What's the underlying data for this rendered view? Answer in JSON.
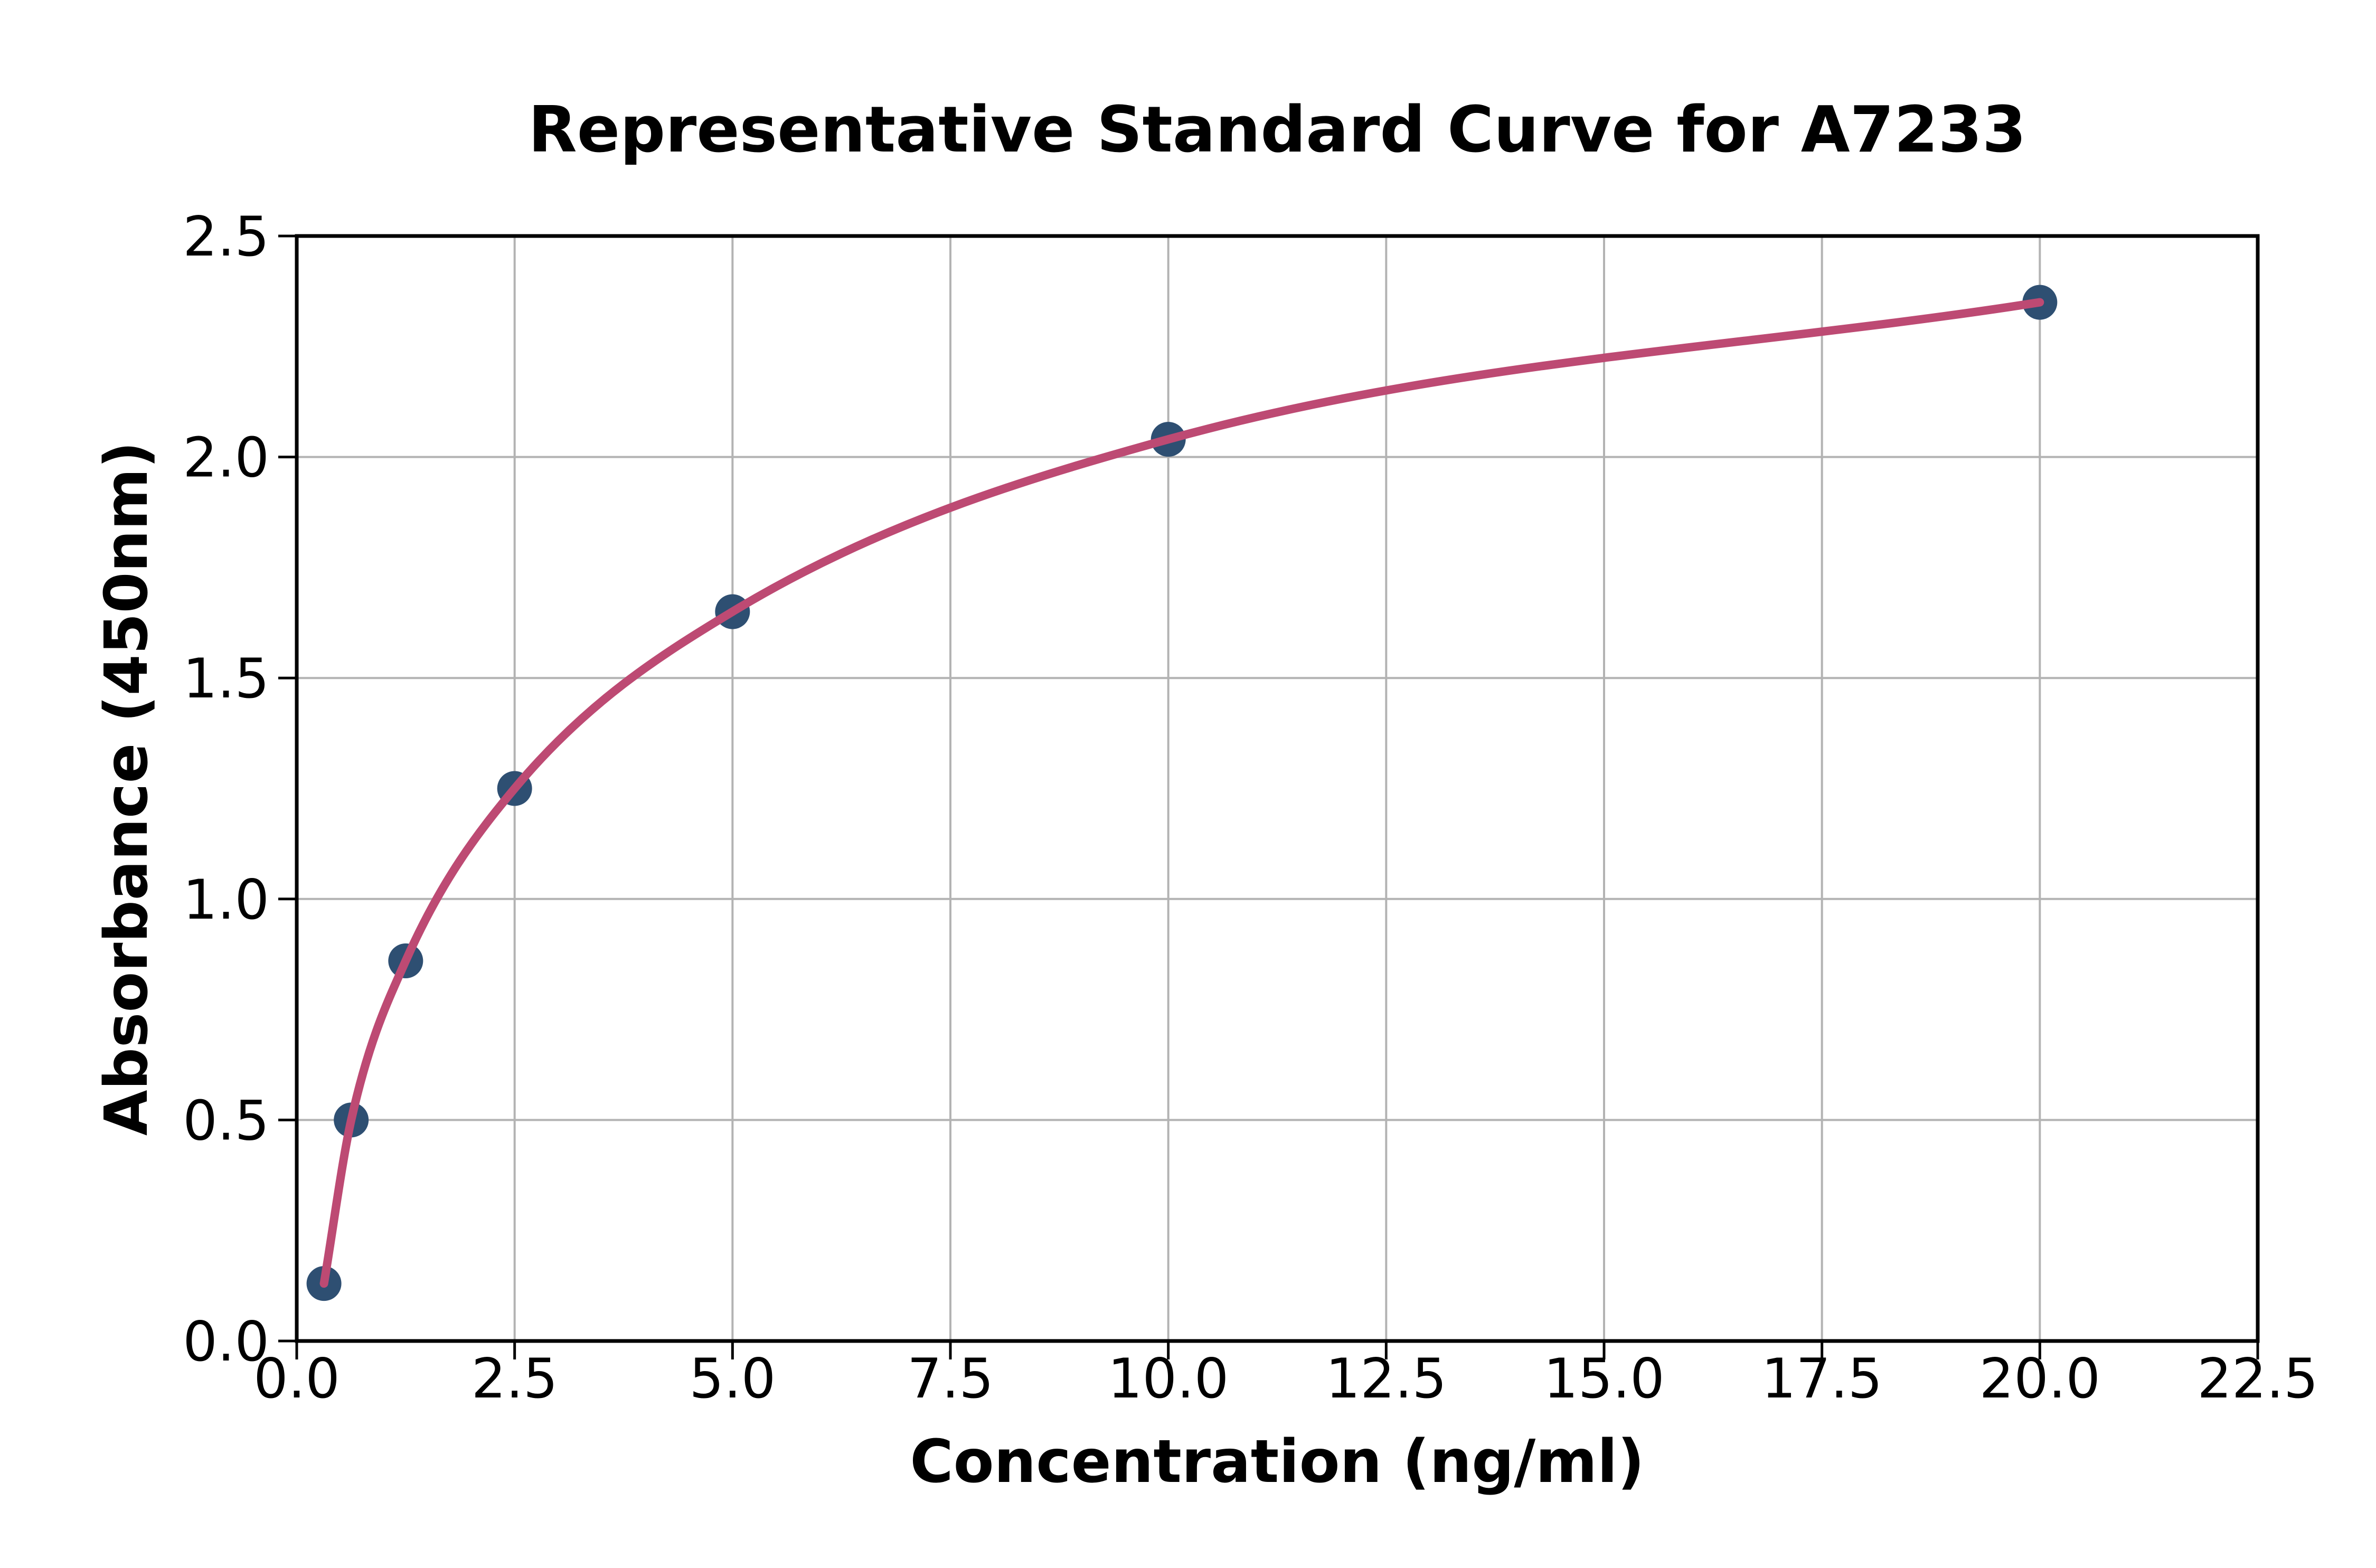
{
  "chart_data": {
    "type": "line",
    "title": "Representative Standard Curve for A7233",
    "xlabel": "Concentration (ng/ml)",
    "ylabel": "Absorbance (450nm)",
    "x": [
      0.3125,
      0.625,
      1.25,
      2.5,
      5.0,
      10.0,
      20.0
    ],
    "y": [
      0.13,
      0.5,
      0.86,
      1.25,
      1.65,
      2.04,
      2.35
    ],
    "xlim": [
      0,
      22.5
    ],
    "ylim": [
      0,
      2.5
    ],
    "xtick_labels": [
      "0.0",
      "2.5",
      "5.0",
      "7.5",
      "10.0",
      "12.5",
      "15.0",
      "17.5",
      "20.0",
      "22.5"
    ],
    "ytick_labels": [
      "0.0",
      "0.5",
      "1.0",
      "1.5",
      "2.0",
      "2.5"
    ],
    "grid": true,
    "legend": "none",
    "marker_shape": "circle",
    "colors": {
      "line": "#bd4a73",
      "marker": "#2e4f72",
      "grid": "#b3b3b3",
      "spine": "#000000",
      "text": "#000000",
      "background": "#ffffff"
    }
  }
}
